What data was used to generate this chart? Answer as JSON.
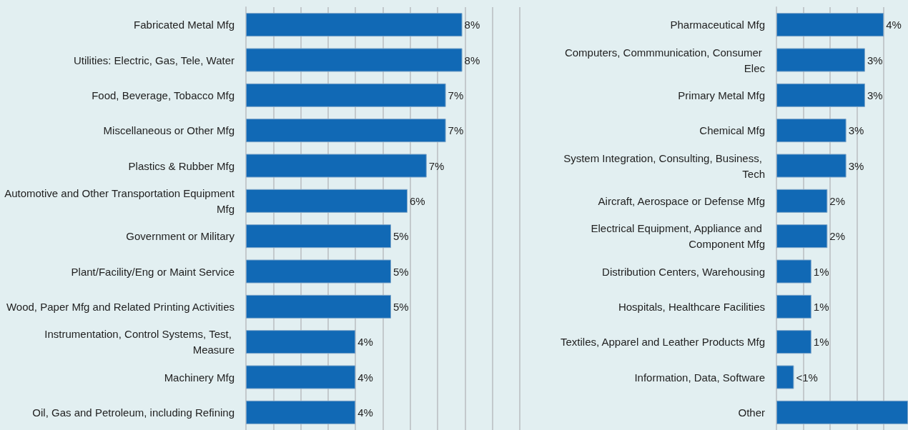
{
  "chart_data": [
    {
      "type": "bar",
      "orientation": "horizontal",
      "categories": [
        "Fabricated Metal Mfg",
        "Utilities: Electric, Gas, Tele, Water",
        "Food, Beverage, Tobacco Mfg",
        "Miscellaneous or Other Mfg",
        "Plastics & Rubber Mfg",
        "Automotive and Other Transportation Equipment Mfg",
        "Government or Military",
        "Plant/Facility/Eng or Maint Service",
        "Wood, Paper Mfg and Related Printing Activities",
        "Instrumentation, Control Systems, Test, Measure",
        "Machinery Mfg",
        "Oil, Gas and Petroleum, including Refining"
      ],
      "values": [
        7.9,
        7.9,
        7.3,
        7.3,
        6.6,
        5.9,
        5.3,
        5.3,
        5.3,
        4.0,
        4.0,
        4.0
      ],
      "value_labels": [
        "8%",
        "8%",
        "7%",
        "7%",
        "7%",
        "6%",
        "5%",
        "5%",
        "5%",
        "4%",
        "4%",
        "4%"
      ],
      "color": "#1169b5",
      "xlim": [
        0,
        10
      ],
      "xticks": [
        {
          "value": 0,
          "label": null
        },
        {
          "value": 1,
          "label": null
        },
        {
          "value": 2,
          "label": null
        },
        {
          "value": 3,
          "label": null
        },
        {
          "value": 4,
          "label": null
        },
        {
          "value": 5,
          "label": null
        },
        {
          "value": 6,
          "label": null
        },
        {
          "value": 7,
          "label": null
        },
        {
          "value": 8,
          "label": null
        },
        {
          "value": 9,
          "label": null
        },
        {
          "value": 10,
          "label": null
        }
      ],
      "grid": "x",
      "tick_labels": "y"
    },
    {
      "type": "bar",
      "orientation": "horizontal",
      "categories": [
        "Pharmaceutical Mfg",
        "Computers, Commmunication, Consumer Elec",
        "Primary Metal Mfg",
        "Chemical Mfg",
        "System Integration, Consulting, Business, Tech",
        "Aircraft, Aerospace or Defense Mfg",
        "Electrical Equipment, Appliance and Component Mfg",
        "Distribution Centers, Warehousing",
        "Hospitals, Healthcare Facilities",
        "Textiles, Apparel and Leather Products Mfg",
        "Information, Data, Software",
        "Other"
      ],
      "values": [
        4.0,
        3.3,
        3.3,
        2.6,
        2.6,
        1.9,
        1.9,
        1.3,
        1.3,
        1.3,
        0.65,
        4.9
      ],
      "value_labels": [
        "4%",
        "3%",
        "3%",
        "3%",
        "3%",
        "2%",
        "2%",
        "1%",
        "1%",
        "1%",
        "<1%",
        null
      ],
      "color": "#1169b5",
      "xlim": [
        0,
        4.9
      ],
      "xticks": [
        {
          "value": 0,
          "label": null
        },
        {
          "value": 1,
          "label": null
        },
        {
          "value": 2,
          "label": null
        },
        {
          "value": 3,
          "label": null
        },
        {
          "value": 4,
          "label": null
        }
      ],
      "grid": "x",
      "tick_labels": "y"
    }
  ]
}
